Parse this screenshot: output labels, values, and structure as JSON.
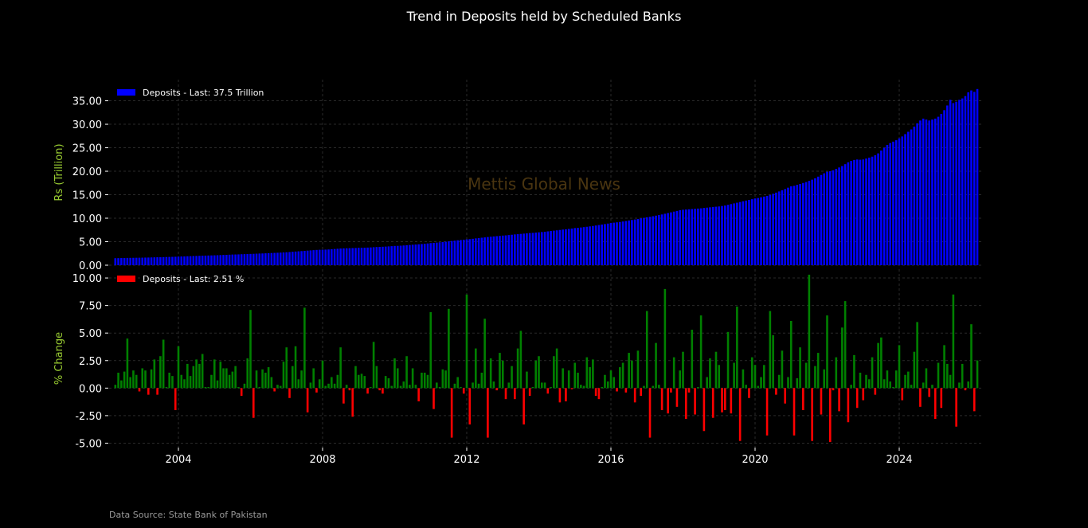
{
  "title": "Trend in Deposits held by Scheduled Banks",
  "source": "Data Source: State Bank of Pakistan",
  "watermark": "Mettis Global News",
  "colors": {
    "deposits": "#0000ff",
    "positive": "#008000",
    "negative": "#ff0000",
    "ylabel": "#9acd32",
    "watermark": "#4a3510",
    "background": "#000000"
  },
  "chart_data": [
    {
      "type": "bar",
      "ylabel": "Rs (Trillion)",
      "legend": "Deposits - Last: 37.5 Trillion",
      "legend_placement": "top-left",
      "frequency": "monthly",
      "x_start": "2002-04",
      "ylim": [
        0,
        39.5
      ],
      "yticks": [
        "0.00",
        "5.00",
        "10.00",
        "15.00",
        "20.00",
        "25.00",
        "30.00",
        "35.00"
      ],
      "grid": true,
      "values": [
        1.48,
        1.5,
        1.52,
        1.53,
        1.55,
        1.56,
        1.57,
        1.58,
        1.59,
        1.6,
        1.62,
        1.63,
        1.65,
        1.67,
        1.69,
        1.7,
        1.72,
        1.74,
        1.76,
        1.78,
        1.8,
        1.83,
        1.85,
        1.87,
        1.9,
        1.92,
        1.95,
        1.97,
        2.0,
        2.02,
        2.04,
        2.06,
        2.08,
        2.1,
        2.12,
        2.15,
        2.18,
        2.2,
        2.23,
        2.26,
        2.28,
        2.3,
        2.33,
        2.35,
        2.37,
        2.4,
        2.42,
        2.45,
        2.48,
        2.5,
        2.53,
        2.56,
        2.59,
        2.62,
        2.65,
        2.68,
        2.71,
        2.75,
        2.8,
        2.85,
        2.9,
        2.95,
        3.0,
        3.05,
        3.1,
        3.15,
        3.2,
        3.25,
        3.28,
        3.3,
        3.32,
        3.35,
        3.4,
        3.45,
        3.5,
        3.55,
        3.58,
        3.6,
        3.62,
        3.64,
        3.66,
        3.7,
        3.7,
        3.72,
        3.75,
        3.78,
        3.82,
        3.86,
        3.9,
        3.93,
        3.96,
        4.0,
        4.05,
        4.1,
        4.12,
        4.15,
        4.2,
        4.25,
        4.3,
        4.35,
        4.4,
        4.45,
        4.5,
        4.55,
        4.62,
        4.7,
        4.75,
        4.8,
        4.86,
        4.92,
        5.0,
        5.08,
        5.15,
        5.22,
        5.3,
        5.36,
        5.42,
        5.5,
        5.55,
        5.62,
        5.7,
        5.78,
        5.85,
        5.92,
        6.0,
        6.06,
        6.12,
        6.18,
        6.24,
        6.3,
        6.35,
        6.42,
        6.48,
        6.55,
        6.6,
        6.66,
        6.72,
        6.78,
        6.84,
        6.88,
        6.94,
        7.0,
        7.05,
        7.12,
        7.2,
        7.28,
        7.35,
        7.42,
        7.5,
        7.58,
        7.65,
        7.72,
        7.8,
        7.9,
        7.95,
        8.02,
        8.1,
        8.18,
        8.26,
        8.35,
        8.45,
        8.55,
        8.65,
        8.75,
        8.85,
        9.0,
        9.05,
        9.12,
        9.2,
        9.3,
        9.4,
        9.52,
        9.62,
        9.72,
        9.84,
        9.96,
        10.08,
        10.2,
        10.3,
        10.42,
        10.55,
        10.68,
        10.8,
        10.95,
        11.1,
        11.25,
        11.4,
        11.55,
        11.7,
        11.8,
        11.85,
        11.9,
        11.95,
        12.0,
        12.05,
        12.1,
        12.18,
        12.25,
        12.32,
        12.4,
        12.45,
        12.5,
        12.6,
        12.7,
        12.85,
        13.0,
        13.15,
        13.3,
        13.45,
        13.6,
        13.75,
        13.9,
        14.05,
        14.2,
        14.3,
        14.45,
        14.6,
        14.75,
        14.95,
        15.2,
        15.45,
        15.7,
        15.95,
        16.2,
        16.5,
        16.8,
        16.9,
        17.1,
        17.3,
        17.5,
        17.7,
        17.95,
        18.2,
        18.5,
        18.85,
        19.2,
        19.55,
        19.9,
        20.0,
        20.2,
        20.5,
        20.8,
        21.1,
        21.5,
        21.9,
        22.2,
        22.4,
        22.5,
        22.45,
        22.5,
        22.7,
        22.9,
        23.1,
        23.4,
        23.8,
        24.4,
        25.0,
        25.6,
        26.0,
        26.3,
        26.6,
        27.0,
        27.4,
        27.9,
        28.4,
        28.9,
        29.5,
        30.2,
        30.8,
        31.2,
        31.0,
        30.8,
        31.0,
        31.2,
        31.6,
        32.2,
        33.0,
        34.0,
        35.2,
        34.5,
        34.8,
        35.2,
        35.5,
        36.0,
        36.8,
        37.2,
        36.9,
        37.5
      ]
    },
    {
      "type": "bar",
      "ylabel": "% Change",
      "legend": "Deposits - Last: 2.51 %",
      "legend_placement": "top-left",
      "frequency": "monthly",
      "x_start": "2002-04",
      "ylim": [
        -5.4,
        10.8
      ],
      "yticks": [
        "-5.00",
        "-2.50",
        "0.00",
        "2.50",
        "5.00",
        "7.50",
        "10.00"
      ],
      "xticks": [
        "2004",
        "2008",
        "2012",
        "2016",
        "2020",
        "2024"
      ],
      "grid": true,
      "values": [
        0.3,
        1.4,
        0.7,
        1.5,
        4.5,
        1.0,
        1.6,
        1.2,
        -0.3,
        1.8,
        1.6,
        -0.6,
        1.7,
        2.6,
        -0.6,
        2.9,
        4.4,
        0.1,
        1.4,
        1.1,
        -2.0,
        3.8,
        1.2,
        0.8,
        2.2,
        1.1,
        2.0,
        2.6,
        2.2,
        3.1,
        0.1,
        0.1,
        1.2,
        2.6,
        0.7,
        2.4,
        1.8,
        1.8,
        1.2,
        1.5,
        2.0,
        0.1,
        -0.7,
        0.4,
        2.7,
        7.1,
        -2.7,
        1.6,
        0.1,
        1.7,
        1.4,
        1.9,
        1.0,
        -0.3,
        0.3,
        0.2,
        2.4,
        3.7,
        -0.9,
        2.0,
        3.8,
        0.8,
        1.6,
        7.3,
        -2.2,
        0.5,
        1.8,
        -0.4,
        0.8,
        2.5,
        0.2,
        0.4,
        1.0,
        0.4,
        1.2,
        3.7,
        -1.4,
        0.3,
        -0.2,
        -2.6,
        2.0,
        1.2,
        1.3,
        1.1,
        -0.5,
        0.1,
        4.2,
        2.0,
        -0.2,
        -0.5,
        1.1,
        0.9,
        0.2,
        2.7,
        1.8,
        0.2,
        0.6,
        2.9,
        0.3,
        1.8,
        0.3,
        -1.2,
        1.4,
        1.4,
        1.2,
        6.9,
        -1.9,
        0.5,
        0.1,
        1.7,
        1.6,
        7.2,
        -4.5,
        0.4,
        1.0,
        0.1,
        -0.5,
        8.5,
        -3.3,
        0.5,
        3.6,
        0.4,
        1.4,
        6.3,
        -4.5,
        2.7,
        0.6,
        -0.2,
        3.2,
        2.5,
        -1.0,
        0.5,
        2.0,
        -1.0,
        3.6,
        5.2,
        -3.3,
        1.5,
        -0.7,
        0.1,
        2.5,
        2.9,
        0.5,
        0.5,
        -0.5,
        0.1,
        2.9,
        3.6,
        -1.3,
        1.8,
        -1.2,
        1.6,
        -0.1,
        2.3,
        1.4,
        0.3,
        0.2,
        2.8,
        1.9,
        2.6,
        -0.7,
        -1.0,
        0.1,
        1.2,
        0.6,
        1.6,
        1.0,
        -0.3,
        1.9,
        2.3,
        -0.4,
        3.2,
        2.5,
        -1.3,
        3.4,
        -0.7,
        0.2,
        7.0,
        -4.5,
        0.2,
        4.1,
        0.3,
        -2.0,
        9.0,
        -2.3,
        -0.4,
        2.8,
        -1.7,
        1.6,
        3.3,
        -2.8,
        -0.4,
        5.3,
        -2.4,
        0.1,
        6.6,
        -3.9,
        1.0,
        2.7,
        -2.7,
        3.3,
        2.1,
        -2.2,
        -2.0,
        5.1,
        -2.3,
        2.3,
        7.4,
        -4.8,
        1.7,
        0.3,
        -0.9,
        2.8,
        2.1,
        0.2,
        1.0,
        2.1,
        -4.3,
        7.0,
        4.8,
        -0.6,
        1.2,
        3.4,
        -1.4,
        1.0,
        6.1,
        -4.3,
        0.9,
        3.7,
        -2.0,
        2.3,
        10.3,
        -4.8,
        2.0,
        3.2,
        -2.4,
        1.7,
        6.6,
        -4.9,
        -0.2,
        2.8,
        -2.1,
        5.5,
        7.9,
        -3.1,
        0.3,
        3.0,
        -1.8,
        1.4,
        -1.1,
        1.2,
        0.8,
        2.8,
        -0.6,
        4.1,
        4.6,
        0.8,
        1.6,
        0.6,
        0.1,
        1.6,
        3.9,
        -1.1,
        1.2,
        1.5,
        0.3,
        3.3,
        6.0,
        -1.7,
        0.5,
        1.8,
        -0.8,
        0.3,
        -2.8,
        2.3,
        -1.8,
        3.9,
        2.2,
        1.2,
        8.5,
        -3.5,
        0.5,
        2.2,
        -0.2,
        0.6,
        5.8,
        -2.1,
        2.51
      ]
    }
  ]
}
